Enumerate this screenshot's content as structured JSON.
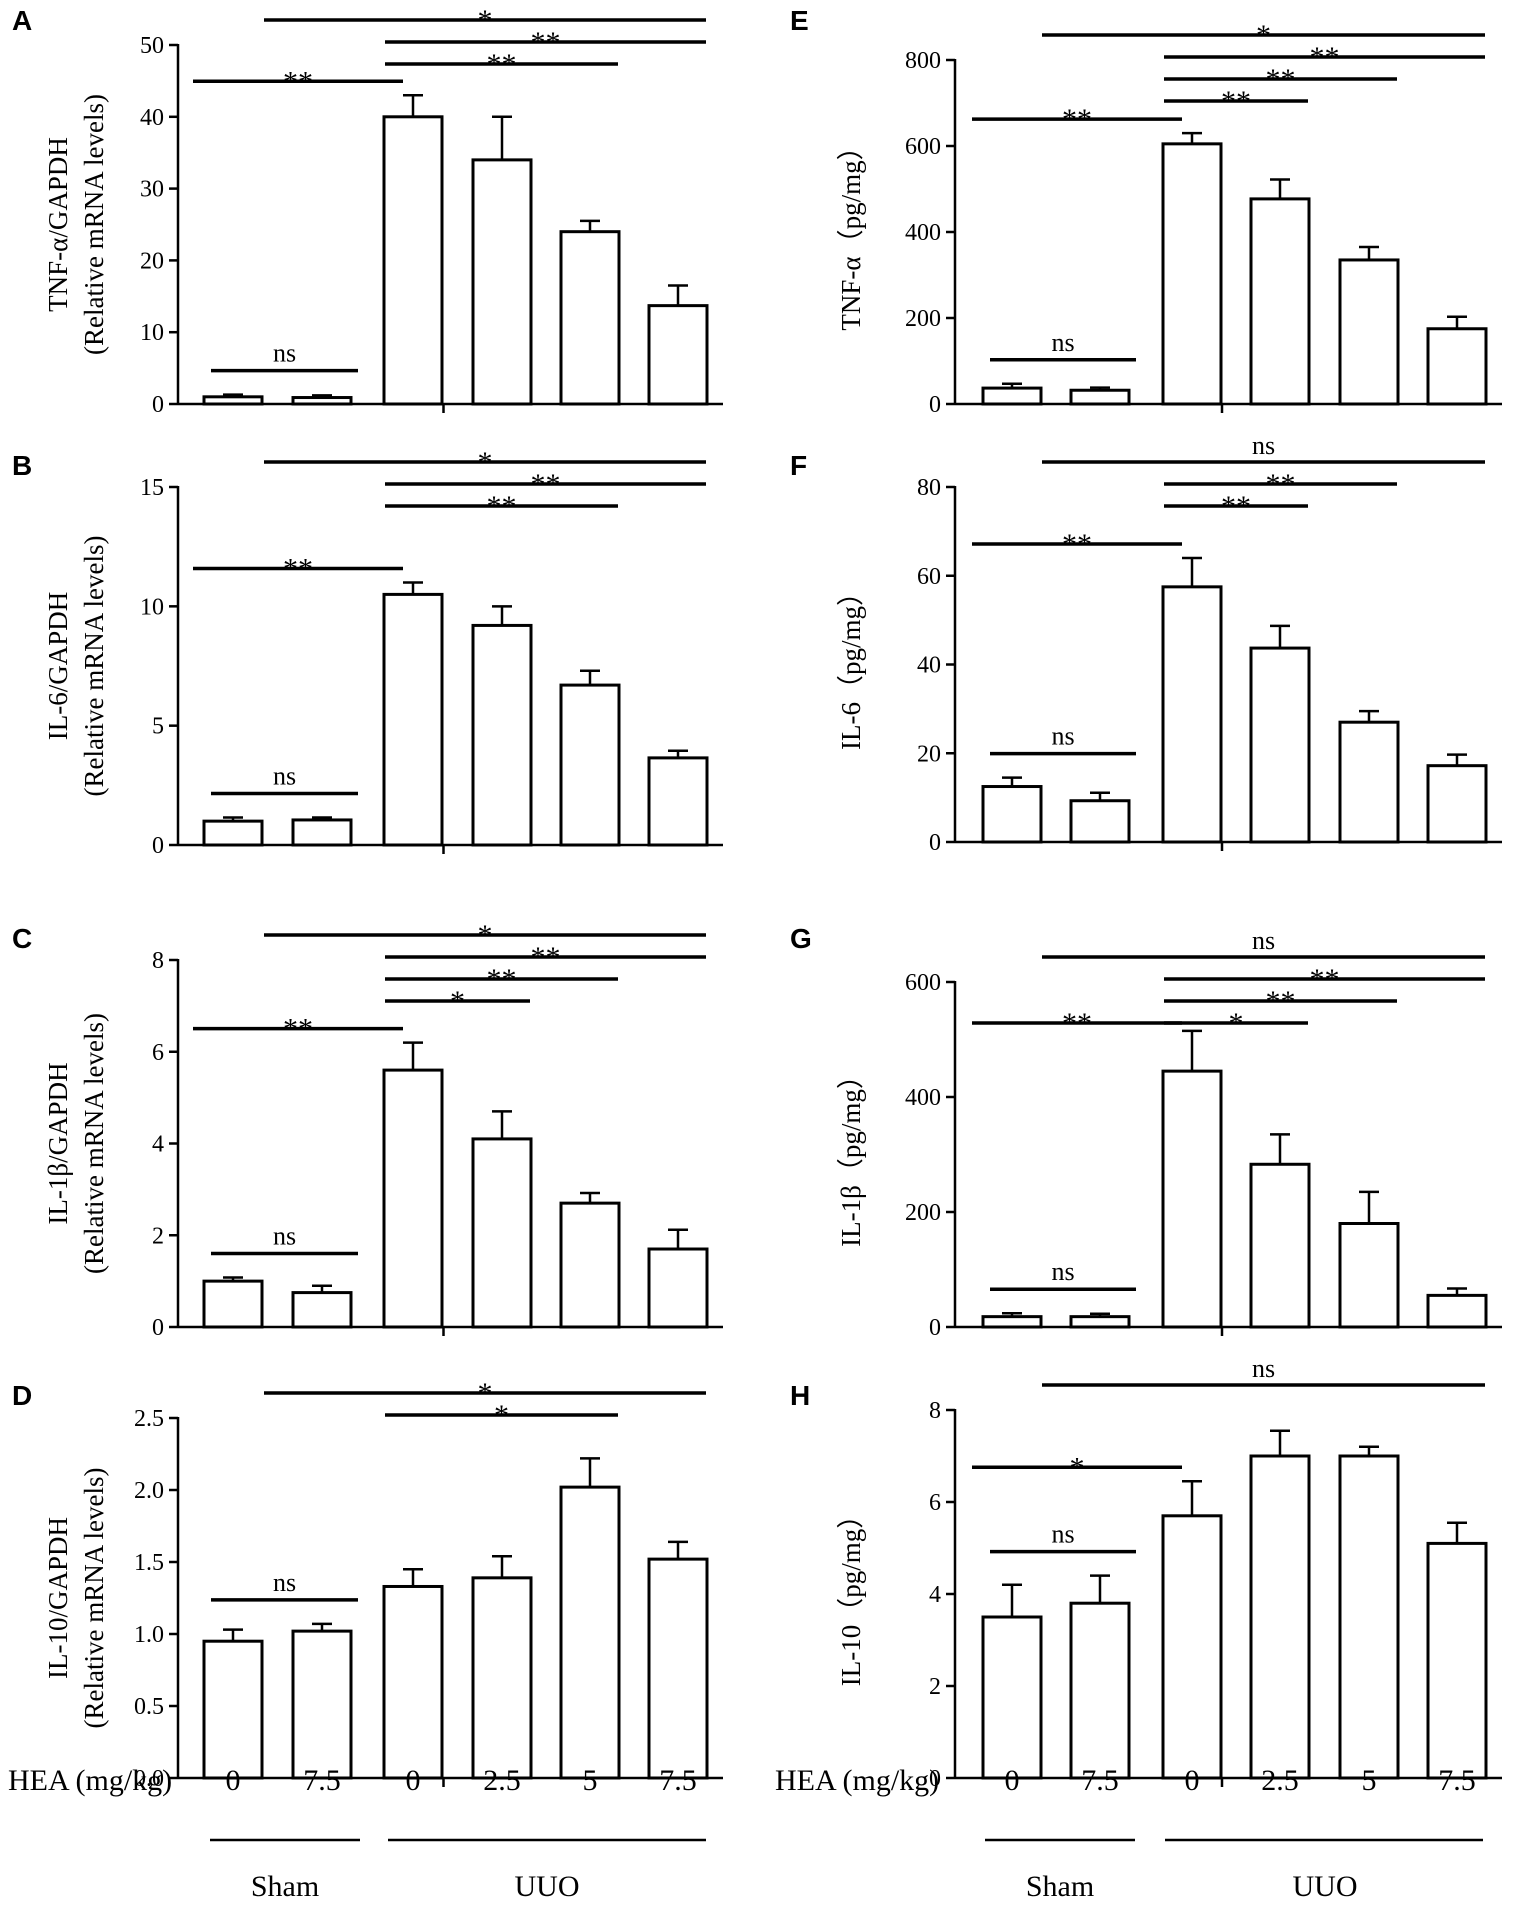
{
  "figure": {
    "x_axis": {
      "heading": "HEA (mg/kg)",
      "doses": [
        "0",
        "7.5",
        "0",
        "2.5",
        "5",
        "7.5"
      ],
      "groups": [
        "Sham",
        "UUO"
      ]
    }
  },
  "chart_data": [
    {
      "id": "A",
      "type": "bar",
      "letter": "A",
      "ylabel_lines": [
        "TNF-α/GAPDH",
        "(Relative mRNA levels)"
      ],
      "ylim": [
        0,
        50
      ],
      "yticks": [
        0,
        10,
        20,
        30,
        40,
        50
      ],
      "ytick_labels": [
        "0",
        "10",
        "20",
        "30",
        "40",
        "50"
      ],
      "values": [
        1.0,
        0.9,
        40.0,
        34.0,
        24.0,
        13.7
      ],
      "errors": [
        0.3,
        0.3,
        3.0,
        6.0,
        1.5,
        2.8
      ],
      "comparisons": [
        {
          "from": 0,
          "to": 2,
          "label": "**"
        },
        {
          "from": 2,
          "to": 4,
          "label": "**"
        },
        {
          "from": 2,
          "to": 5,
          "label": "**"
        },
        {
          "from": 1,
          "to": 5,
          "label": "*"
        },
        {
          "from": 0,
          "to": 1,
          "label": "ns"
        }
      ]
    },
    {
      "id": "B",
      "type": "bar",
      "letter": "B",
      "ylabel_lines": [
        "IL-6/GAPDH",
        "(Relative mRNA levels)"
      ],
      "ylim": [
        0,
        15
      ],
      "yticks": [
        0,
        5,
        10,
        15
      ],
      "ytick_labels": [
        "0",
        "5",
        "10",
        "15"
      ],
      "values": [
        1.0,
        1.05,
        10.5,
        9.2,
        6.7,
        3.65
      ],
      "errors": [
        0.15,
        0.1,
        0.5,
        0.8,
        0.6,
        0.3
      ],
      "comparisons": [
        {
          "from": 0,
          "to": 2,
          "label": "**"
        },
        {
          "from": 2,
          "to": 4,
          "label": "**"
        },
        {
          "from": 2,
          "to": 5,
          "label": "**"
        },
        {
          "from": 1,
          "to": 5,
          "label": "*"
        },
        {
          "from": 0,
          "to": 1,
          "label": "ns"
        }
      ]
    },
    {
      "id": "C",
      "type": "bar",
      "letter": "C",
      "ylabel_lines": [
        "IL-1β/GAPDH",
        "(Relative mRNA levels)"
      ],
      "ylim": [
        0,
        8
      ],
      "yticks": [
        0,
        2,
        4,
        6,
        8
      ],
      "ytick_labels": [
        "0",
        "2",
        "4",
        "6",
        "8"
      ],
      "values": [
        1.0,
        0.75,
        5.6,
        4.1,
        2.7,
        1.7
      ],
      "errors": [
        0.08,
        0.15,
        0.6,
        0.6,
        0.22,
        0.42
      ],
      "comparisons": [
        {
          "from": 0,
          "to": 2,
          "label": "**"
        },
        {
          "from": 2,
          "to": 3,
          "label": "*"
        },
        {
          "from": 2,
          "to": 4,
          "label": "**"
        },
        {
          "from": 2,
          "to": 5,
          "label": "**"
        },
        {
          "from": 1,
          "to": 5,
          "label": "*"
        },
        {
          "from": 0,
          "to": 1,
          "label": "ns"
        }
      ]
    },
    {
      "id": "D",
      "type": "bar",
      "letter": "D",
      "ylabel_lines": [
        "IL-10/GAPDH",
        "(Relative mRNA levels)"
      ],
      "ylim": [
        0,
        2.5
      ],
      "yticks": [
        0,
        0.5,
        1.0,
        1.5,
        2.0,
        2.5
      ],
      "ytick_labels": [
        "0.0",
        "0.5",
        "1.0",
        "1.5",
        "2.0",
        "2.5"
      ],
      "values": [
        0.95,
        1.02,
        1.33,
        1.39,
        2.02,
        1.52
      ],
      "errors": [
        0.08,
        0.05,
        0.12,
        0.15,
        0.2,
        0.12
      ],
      "comparisons": [
        {
          "from": 2,
          "to": 4,
          "label": "*"
        },
        {
          "from": 1,
          "to": 5,
          "label": "*"
        },
        {
          "from": 0,
          "to": 1,
          "label": "ns"
        }
      ]
    },
    {
      "id": "E",
      "type": "bar",
      "letter": "E",
      "ylabel_lines": [
        "TNF-α（pg/mg）"
      ],
      "ylim": [
        0,
        800
      ],
      "yticks": [
        0,
        200,
        400,
        600,
        800
      ],
      "ytick_labels": [
        "0",
        "200",
        "400",
        "600",
        "800"
      ],
      "values": [
        37,
        32,
        605,
        477,
        335,
        175
      ],
      "errors": [
        10,
        6,
        25,
        45,
        30,
        28
      ],
      "comparisons": [
        {
          "from": 0,
          "to": 2,
          "label": "**"
        },
        {
          "from": 2,
          "to": 3,
          "label": "**"
        },
        {
          "from": 2,
          "to": 4,
          "label": "**"
        },
        {
          "from": 2,
          "to": 5,
          "label": "**"
        },
        {
          "from": 1,
          "to": 5,
          "label": "*"
        },
        {
          "from": 0,
          "to": 1,
          "label": "ns"
        }
      ]
    },
    {
      "id": "F",
      "type": "bar",
      "letter": "F",
      "ylabel_lines": [
        "IL-6（pg/mg）"
      ],
      "ylim": [
        0,
        80
      ],
      "yticks": [
        0,
        20,
        40,
        60,
        80
      ],
      "ytick_labels": [
        "0",
        "20",
        "40",
        "60",
        "80"
      ],
      "values": [
        12.5,
        9.3,
        57.5,
        43.7,
        27.0,
        17.2
      ],
      "errors": [
        2.0,
        1.8,
        6.5,
        5.0,
        2.5,
        2.5
      ],
      "comparisons": [
        {
          "from": 0,
          "to": 2,
          "label": "**"
        },
        {
          "from": 2,
          "to": 3,
          "label": "**"
        },
        {
          "from": 2,
          "to": 4,
          "label": "**"
        },
        {
          "from": 1,
          "to": 5,
          "label": "ns"
        },
        {
          "from": 0,
          "to": 1,
          "label": "ns"
        }
      ]
    },
    {
      "id": "G",
      "type": "bar",
      "letter": "G",
      "ylabel_lines": [
        "IL-1β（pg/mg）"
      ],
      "ylim": [
        0,
        600
      ],
      "yticks": [
        0,
        200,
        400,
        600
      ],
      "ytick_labels": [
        "0",
        "200",
        "400",
        "600"
      ],
      "values": [
        18,
        18,
        445,
        283,
        180,
        55
      ],
      "errors": [
        6,
        5,
        70,
        52,
        55,
        12
      ],
      "comparisons": [
        {
          "from": 0,
          "to": 2,
          "label": "**"
        },
        {
          "from": 2,
          "to": 3,
          "label": "*"
        },
        {
          "from": 2,
          "to": 4,
          "label": "**"
        },
        {
          "from": 2,
          "to": 5,
          "label": "**"
        },
        {
          "from": 1,
          "to": 5,
          "label": "ns"
        },
        {
          "from": 0,
          "to": 1,
          "label": "ns"
        }
      ]
    },
    {
      "id": "H",
      "type": "bar",
      "letter": "H",
      "ylabel_lines": [
        "IL-10（pg/mg）"
      ],
      "ylim": [
        0,
        8
      ],
      "yticks": [
        0,
        2,
        4,
        6,
        8
      ],
      "ytick_labels": [
        "0",
        "2",
        "4",
        "6",
        "8"
      ],
      "values": [
        3.5,
        3.8,
        5.7,
        7.0,
        7.0,
        5.1
      ],
      "errors": [
        0.7,
        0.6,
        0.75,
        0.55,
        0.2,
        0.45
      ],
      "comparisons": [
        {
          "from": 0,
          "to": 2,
          "label": "*"
        },
        {
          "from": 1,
          "to": 5,
          "label": "ns"
        },
        {
          "from": 0,
          "to": 1,
          "label": "ns"
        }
      ]
    }
  ]
}
